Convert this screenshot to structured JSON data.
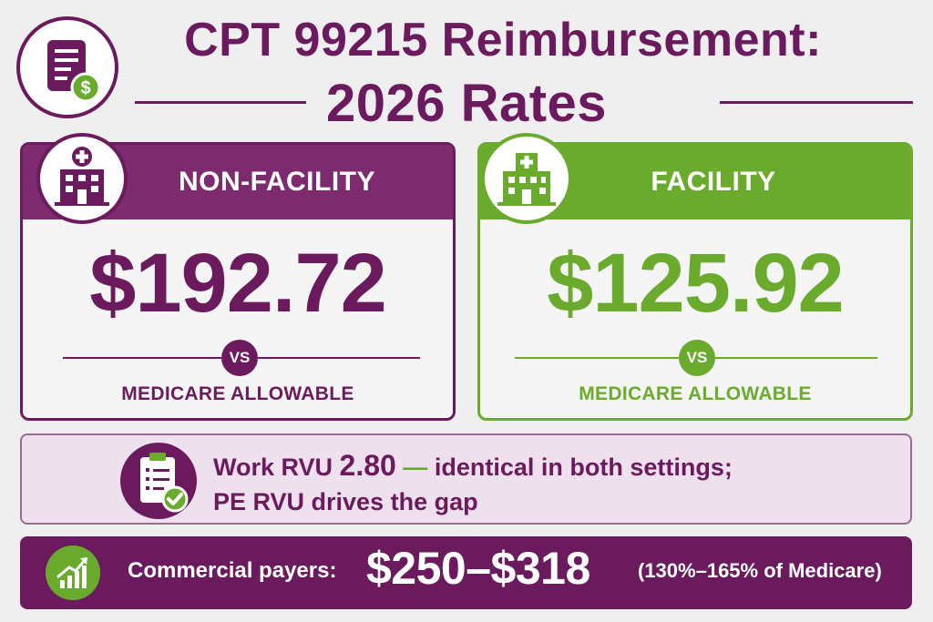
{
  "title": {
    "line1": "CPT 99215 Reimbursement:",
    "line2": "2026 Rates"
  },
  "cards": {
    "non_facility": {
      "label": "NON-FACILITY",
      "amount": "$192.72",
      "vs": "VS",
      "caption": "MEDICARE ALLOWABLE"
    },
    "facility": {
      "label": "FACILITY",
      "amount": "$125.92",
      "vs": "VS",
      "caption": "MEDICARE ALLOWABLE"
    }
  },
  "rvu": {
    "prefix": "Work RVU ",
    "value": "2.80",
    "dash": " — ",
    "suffix": "identical in both settings;",
    "line2": "PE RVU drives the gap"
  },
  "commercial": {
    "label": "Commercial payers:",
    "range": "$250–$318",
    "note": "(130%–165% of Medicare)"
  },
  "colors": {
    "purple": "#6b1a5e",
    "green": "#6aab2e",
    "lavender": "#efe0ee",
    "background": "#efefef"
  },
  "icons": [
    "billing-document-icon",
    "dollar-coin-icon",
    "hospital-icon",
    "clipboard-check-icon",
    "growth-chart-icon"
  ]
}
